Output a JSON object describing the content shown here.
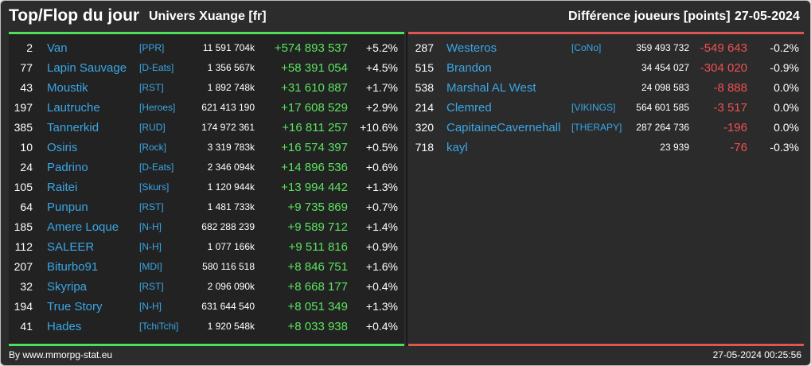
{
  "header": {
    "title": "Top/Flop du jour",
    "universe": "Univers Xuange [fr]",
    "subtitle": "Différence joueurs [points]",
    "date": "27-05-2024"
  },
  "colors": {
    "top_accent": "#4fe05a",
    "flop_accent": "#e05454",
    "name_link": "#3aa6e6",
    "background": "#2c2c2c"
  },
  "top": [
    {
      "rank": "2",
      "name": "Van",
      "ally": "[PPR]",
      "points": "11 591 704k",
      "delta": "+574 893 537",
      "pct": "+5.2%"
    },
    {
      "rank": "77",
      "name": "Lapin Sauvage",
      "ally": "[D-Eats]",
      "points": "1 356 567k",
      "delta": "+58 391 054",
      "pct": "+4.5%"
    },
    {
      "rank": "43",
      "name": "Moustik",
      "ally": "[RST]",
      "points": "1 892 748k",
      "delta": "+31 610 887",
      "pct": "+1.7%"
    },
    {
      "rank": "197",
      "name": "Lautruche",
      "ally": "[Heroes]",
      "points": "621 413 190",
      "delta": "+17 608 529",
      "pct": "+2.9%"
    },
    {
      "rank": "385",
      "name": "Tannerkid",
      "ally": "[RUD]",
      "points": "174 972 361",
      "delta": "+16 811 257",
      "pct": "+10.6%"
    },
    {
      "rank": "10",
      "name": "Osiris",
      "ally": "[Rock]",
      "points": "3 319 783k",
      "delta": "+16 574 397",
      "pct": "+0.5%"
    },
    {
      "rank": "24",
      "name": "Padrino",
      "ally": "[D-Eats]",
      "points": "2 346 094k",
      "delta": "+14 896 536",
      "pct": "+0.6%"
    },
    {
      "rank": "105",
      "name": "Raitei",
      "ally": "[Skurs]",
      "points": "1 120 944k",
      "delta": "+13 994 442",
      "pct": "+1.3%"
    },
    {
      "rank": "64",
      "name": "Punpun",
      "ally": "[RST]",
      "points": "1 481 733k",
      "delta": "+9 735 869",
      "pct": "+0.7%"
    },
    {
      "rank": "185",
      "name": "Amere Loque",
      "ally": "[N-H]",
      "points": "682 288 239",
      "delta": "+9 589 712",
      "pct": "+1.4%"
    },
    {
      "rank": "112",
      "name": "SALEER",
      "ally": "[N-H]",
      "points": "1 077 166k",
      "delta": "+9 511 816",
      "pct": "+0.9%"
    },
    {
      "rank": "207",
      "name": "Biturbo91",
      "ally": "[MDI]",
      "points": "580 116 518",
      "delta": "+8 846 751",
      "pct": "+1.6%"
    },
    {
      "rank": "32",
      "name": "Skyripa",
      "ally": "[RST]",
      "points": "2 096 090k",
      "delta": "+8 668 177",
      "pct": "+0.4%"
    },
    {
      "rank": "194",
      "name": "True Story",
      "ally": "[N-H]",
      "points": "631 644 540",
      "delta": "+8 051 349",
      "pct": "+1.3%"
    },
    {
      "rank": "41",
      "name": "Hades",
      "ally": "[TchiTchi]",
      "points": "1 920 548k",
      "delta": "+8 033 938",
      "pct": "+0.4%"
    }
  ],
  "flop": [
    {
      "rank": "287",
      "name": "Westeros",
      "ally": "[CoNo]",
      "points": "359 493 732",
      "delta": "-549 643",
      "pct": "-0.2%"
    },
    {
      "rank": "515",
      "name": "Brandon",
      "ally": "",
      "points": "34 454 027",
      "delta": "-304 020",
      "pct": "-0.9%"
    },
    {
      "rank": "538",
      "name": "Marshal AL West",
      "ally": "",
      "points": "24 098 583",
      "delta": "-8 888",
      "pct": "0.0%"
    },
    {
      "rank": "214",
      "name": "Clemred",
      "ally": "[VIKINGS]",
      "points": "564 601 585",
      "delta": "-3 517",
      "pct": "0.0%"
    },
    {
      "rank": "320",
      "name": "CapitaineCavernehall",
      "ally": "[THERAPY]",
      "points": "287 264 736",
      "delta": "-196",
      "pct": "0.0%"
    },
    {
      "rank": "718",
      "name": "kayl",
      "ally": "",
      "points": "23 939",
      "delta": "-76",
      "pct": "-0.3%"
    }
  ],
  "footer": {
    "credit": "By www.mmorpg-stat.eu",
    "timestamp": "27-05-2024 00:25:56"
  }
}
